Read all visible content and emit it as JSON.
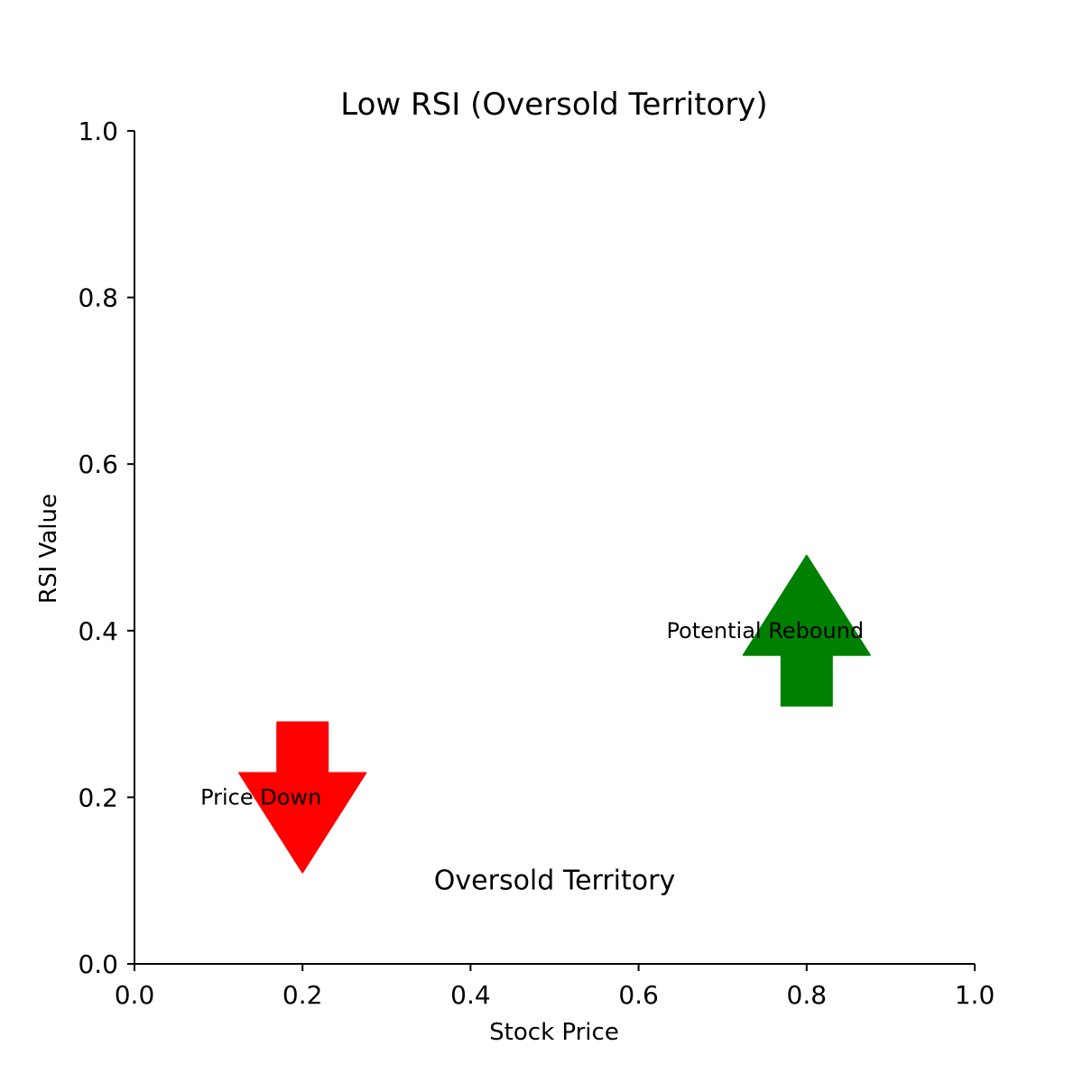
{
  "chart_data": {
    "type": "scatter",
    "title": "Low RSI (Oversold Territory)",
    "xlabel": "Stock Price",
    "ylabel": "RSI Value",
    "xlim": [
      0.0,
      1.0
    ],
    "ylim": [
      0.0,
      1.0
    ],
    "xticks": [
      "0.0",
      "0.2",
      "0.4",
      "0.6",
      "0.8",
      "1.0"
    ],
    "yticks": [
      "0.0",
      "0.2",
      "0.4",
      "0.6",
      "0.8",
      "1.0"
    ],
    "grid": false,
    "arrows": [
      {
        "label": "Price Down",
        "direction": "down",
        "x": 0.2,
        "y_start": 0.29,
        "y_end": 0.11,
        "label_y": 0.2,
        "color": "#ff0000"
      },
      {
        "label": "Potential Rebound",
        "direction": "up",
        "x": 0.8,
        "y_start": 0.31,
        "y_end": 0.49,
        "label_y": 0.4,
        "color": "#008000"
      }
    ],
    "annotations": [
      {
        "text": "Oversold Territory",
        "x": 0.5,
        "y": 0.1
      }
    ]
  }
}
